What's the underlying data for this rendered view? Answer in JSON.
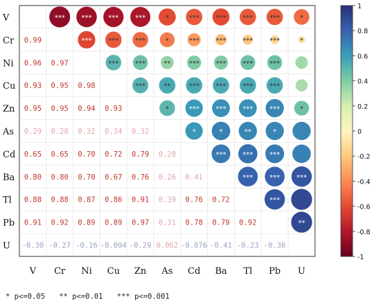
{
  "chart_data": {
    "type": "heatmap",
    "variables": [
      "V",
      "Cr",
      "Ni",
      "Cu",
      "Zn",
      "As",
      "Cd",
      "Ba",
      "Tl",
      "Pb",
      "U"
    ],
    "lower_values": [
      [
        null,
        null,
        null,
        null,
        null,
        null,
        null,
        null,
        null,
        null,
        null
      ],
      [
        0.99,
        null,
        null,
        null,
        null,
        null,
        null,
        null,
        null,
        null,
        null
      ],
      [
        0.96,
        0.97,
        null,
        null,
        null,
        null,
        null,
        null,
        null,
        null,
        null
      ],
      [
        0.93,
        0.95,
        0.98,
        null,
        null,
        null,
        null,
        null,
        null,
        null,
        null
      ],
      [
        0.95,
        0.95,
        0.94,
        0.93,
        null,
        null,
        null,
        null,
        null,
        null,
        null
      ],
      [
        0.29,
        0.28,
        0.32,
        0.34,
        0.32,
        null,
        null,
        null,
        null,
        null,
        null
      ],
      [
        0.65,
        0.65,
        0.7,
        0.72,
        0.79,
        0.28,
        null,
        null,
        null,
        null,
        null
      ],
      [
        0.8,
        0.8,
        0.7,
        0.67,
        0.76,
        0.26,
        0.41,
        null,
        null,
        null,
        null
      ],
      [
        0.88,
        0.88,
        0.87,
        0.86,
        0.91,
        0.39,
        0.76,
        0.72,
        null,
        null,
        null
      ],
      [
        0.91,
        0.92,
        0.89,
        0.89,
        0.97,
        0.31,
        0.78,
        0.79,
        0.92,
        null,
        null
      ],
      [
        -0.3,
        -0.27,
        -0.16,
        -0.094,
        -0.29,
        0.062,
        -0.076,
        -0.41,
        -0.23,
        -0.36,
        null
      ]
    ],
    "lower_labels": [
      [
        null,
        null,
        null,
        null,
        null,
        null,
        null,
        null,
        null,
        null,
        null
      ],
      [
        "0.99",
        null,
        null,
        null,
        null,
        null,
        null,
        null,
        null,
        null,
        null
      ],
      [
        "0.96",
        "0.97",
        null,
        null,
        null,
        null,
        null,
        null,
        null,
        null,
        null
      ],
      [
        "0.93",
        "0.95",
        "0.98",
        null,
        null,
        null,
        null,
        null,
        null,
        null,
        null
      ],
      [
        "0.95",
        "0.95",
        "0.94",
        "0.93",
        null,
        null,
        null,
        null,
        null,
        null,
        null
      ],
      [
        "0.29",
        "0.28",
        "0.32",
        "0.34",
        "0.32",
        null,
        null,
        null,
        null,
        null,
        null
      ],
      [
        "0.65",
        "0.65",
        "0.70",
        "0.72",
        "0.79",
        "0.28",
        null,
        null,
        null,
        null,
        null
      ],
      [
        "0.80",
        "0.80",
        "0.70",
        "0.67",
        "0.76",
        "0.26",
        "0.41",
        null,
        null,
        null,
        null
      ],
      [
        "0.88",
        "0.88",
        "0.87",
        "0.86",
        "0.91",
        "0.39",
        "0.76",
        "0.72",
        null,
        null,
        null
      ],
      [
        "0.91",
        "0.92",
        "0.89",
        "0.89",
        "0.97",
        "0.31",
        "0.78",
        "0.79",
        "0.92",
        null,
        null
      ],
      [
        "-0.30",
        "-0.27",
        "-0.16",
        "-0.094",
        "-0.29",
        "0.062",
        "-0.076",
        "-0.41",
        "-0.23",
        "-0.36",
        null
      ]
    ],
    "upper_circles": [
      [
        null,
        -0.89,
        -0.86,
        -0.84,
        -0.82,
        -0.6,
        -0.55,
        -0.6,
        -0.55,
        -0.55,
        -0.5
      ],
      [
        null,
        null,
        -0.62,
        -0.55,
        -0.5,
        -0.45,
        -0.35,
        -0.25,
        -0.2,
        -0.15,
        -0.1
      ],
      [
        null,
        null,
        null,
        0.5,
        0.45,
        0.35,
        0.4,
        0.4,
        0.45,
        0.45,
        0.32
      ],
      [
        null,
        null,
        null,
        null,
        0.52,
        0.55,
        0.55,
        0.55,
        0.55,
        0.55,
        0.3
      ],
      [
        null,
        null,
        null,
        null,
        null,
        0.5,
        0.62,
        0.65,
        0.65,
        0.68,
        0.45
      ],
      [
        null,
        null,
        null,
        null,
        null,
        null,
        0.62,
        0.7,
        0.68,
        0.68,
        0.68
      ],
      [
        null,
        null,
        null,
        null,
        null,
        null,
        null,
        0.72,
        0.75,
        0.72,
        0.7
      ],
      [
        null,
        null,
        null,
        null,
        null,
        null,
        null,
        null,
        0.8,
        0.8,
        0.85
      ],
      [
        null,
        null,
        null,
        null,
        null,
        null,
        null,
        null,
        null,
        0.85,
        0.9
      ],
      [
        null,
        null,
        null,
        null,
        null,
        null,
        null,
        null,
        null,
        null,
        0.9
      ],
      [
        null,
        null,
        null,
        null,
        null,
        null,
        null,
        null,
        null,
        null,
        null
      ]
    ],
    "upper_stars": [
      [
        "",
        "***",
        "***",
        "***",
        "***",
        "*",
        "***",
        "***",
        "***",
        "***",
        "*"
      ],
      [
        "",
        "",
        "***",
        "***",
        "***",
        "*",
        "***",
        "***",
        "***",
        "***",
        "*"
      ],
      [
        "",
        "",
        "",
        "***",
        "***",
        "**",
        "***",
        "***",
        "***",
        "***",
        ""
      ],
      [
        "",
        "",
        "",
        "",
        "***",
        "**",
        "***",
        "***",
        "***",
        "***",
        ""
      ],
      [
        "",
        "",
        "",
        "",
        "",
        "*",
        "***",
        "***",
        "***",
        "***",
        "*"
      ],
      [
        "",
        "",
        "",
        "",
        "",
        "",
        "*",
        "*",
        "**",
        "*",
        ""
      ],
      [
        "",
        "",
        "",
        "",
        "",
        "",
        "",
        "***",
        "***",
        "***",
        ""
      ],
      [
        "",
        "",
        "",
        "",
        "",
        "",
        "",
        "",
        "***",
        "***",
        "***"
      ],
      [
        "",
        "",
        "",
        "",
        "",
        "",
        "",
        "",
        "",
        "***",
        ""
      ],
      [
        "",
        "",
        "",
        "",
        "",
        "",
        "",
        "",
        "",
        "",
        "**"
      ],
      [
        "",
        "",
        "",
        "",
        "",
        "",
        "",
        "",
        "",
        "",
        ""
      ]
    ],
    "colorbar": {
      "range": [
        -1,
        1
      ],
      "ticks": [
        "1",
        "0.8",
        "0.6",
        "0.4",
        "0.2",
        "0",
        "-0.2",
        "-0.4",
        "-0.6",
        "-0.8",
        "-1"
      ]
    },
    "colors": [
      "#67001f",
      "#b2182b",
      "#e34a33",
      "#f98b56",
      "#fdc97f",
      "#fff5c0",
      "#d6efb0",
      "#7fcba4",
      "#3a9eb9",
      "#3762ae",
      "#2a2f78"
    ],
    "legend_notes": [
      "* p<=0.05",
      "** p<=0.01",
      "*** p<=0.001"
    ]
  }
}
